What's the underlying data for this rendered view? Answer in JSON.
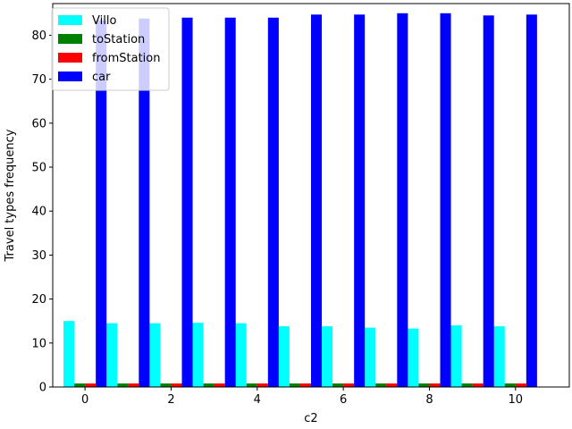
{
  "chart_data": {
    "type": "bar",
    "xlabel": "c2",
    "ylabel": "Travel types frequency",
    "x": [
      0,
      1,
      2,
      3,
      4,
      5,
      6,
      7,
      8,
      9,
      10
    ],
    "xlim": [
      -0.75,
      11.25
    ],
    "ylim": [
      0,
      87.2
    ],
    "xticks": [
      0,
      2,
      4,
      6,
      8,
      10
    ],
    "yticks": [
      0,
      10,
      20,
      30,
      40,
      50,
      60,
      70,
      80
    ],
    "grid": false,
    "legend_position": "top-left",
    "series": [
      {
        "name": "Villo",
        "color": "#00ffff",
        "values": [
          15.0,
          14.5,
          14.5,
          14.6,
          14.5,
          13.8,
          13.8,
          13.5,
          13.3,
          14.0,
          13.8
        ]
      },
      {
        "name": "toStation",
        "color": "#008000",
        "values": [
          0.8,
          0.8,
          0.8,
          0.8,
          0.8,
          0.8,
          0.8,
          0.8,
          0.8,
          0.8,
          0.8
        ]
      },
      {
        "name": "fromStation",
        "color": "#ff0000",
        "values": [
          0.8,
          0.8,
          0.8,
          0.8,
          0.8,
          0.8,
          0.8,
          0.8,
          0.8,
          0.8,
          0.8
        ]
      },
      {
        "name": "car",
        "color": "#0000ff",
        "values": [
          83.4,
          83.8,
          84.0,
          84.0,
          84.0,
          84.7,
          84.7,
          85.0,
          85.0,
          84.5,
          84.7
        ]
      }
    ]
  }
}
